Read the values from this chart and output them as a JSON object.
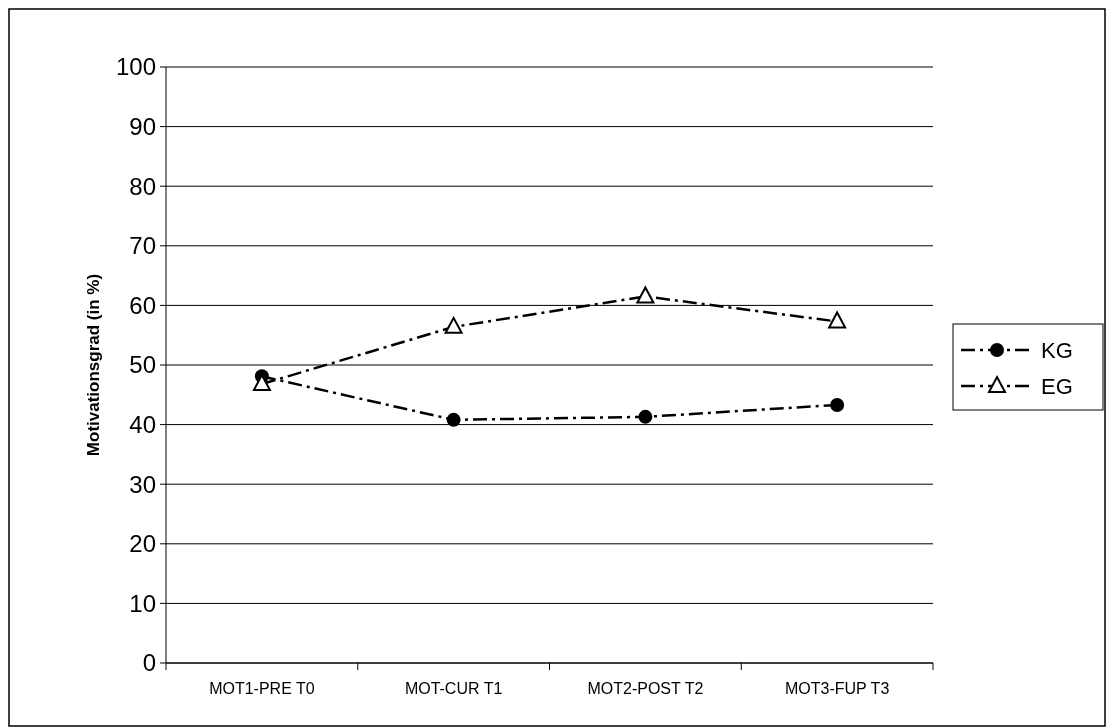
{
  "chart_data": {
    "type": "line",
    "ylabel": "Motivationsgrad (in %)",
    "categories": [
      "MOT1-PRE T0",
      "MOT-CUR T1",
      "MOT2-POST T2",
      "MOT3-FUP T3"
    ],
    "series": [
      {
        "name": "KG",
        "color": "#000000",
        "marker": "circle",
        "values": [
          48.1,
          40.8,
          41.3,
          43.3
        ]
      },
      {
        "name": "EG",
        "color": "#000000",
        "marker": "triangle",
        "values": [
          46.8,
          56.4,
          61.5,
          57.3
        ]
      }
    ],
    "ylim": [
      0,
      100
    ],
    "yticks": [
      0,
      10,
      20,
      30,
      40,
      50,
      60,
      70,
      80,
      90,
      100
    ],
    "grid": "y",
    "legend": "right",
    "line_style": "dashed"
  }
}
